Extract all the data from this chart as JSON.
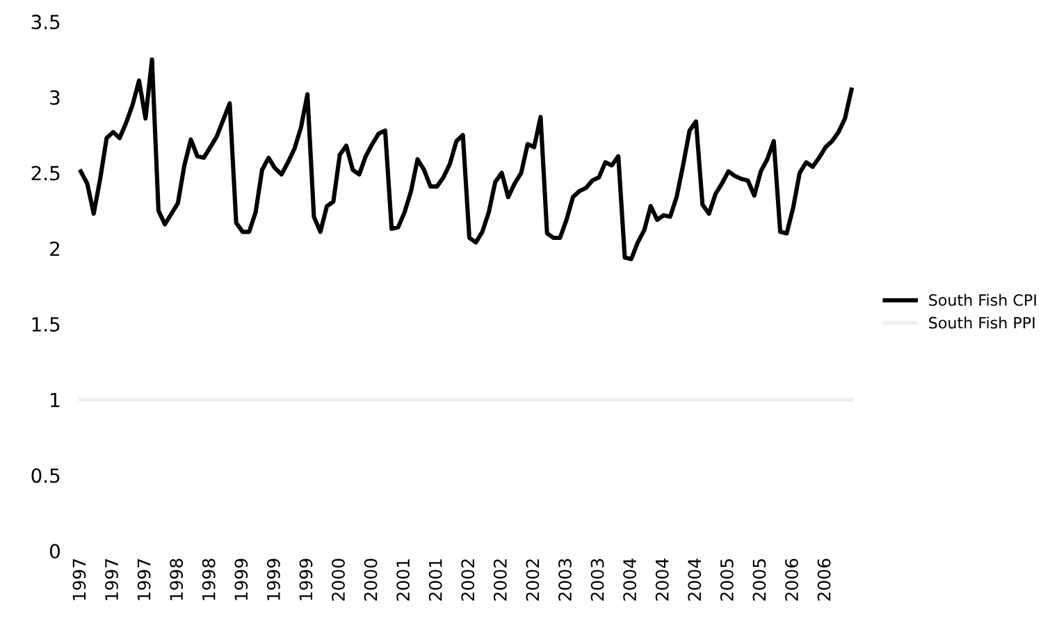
{
  "chart_data": {
    "type": "line",
    "categories": [
      "1997",
      null,
      null,
      null,
      null,
      "1997",
      null,
      null,
      null,
      null,
      "1997",
      null,
      null,
      null,
      null,
      "1998",
      null,
      null,
      null,
      null,
      "1998",
      null,
      null,
      null,
      null,
      "1999",
      null,
      null,
      null,
      null,
      "1999",
      null,
      null,
      null,
      null,
      "1999",
      null,
      null,
      null,
      null,
      "2000",
      null,
      null,
      null,
      null,
      "2000",
      null,
      null,
      null,
      null,
      "2001",
      null,
      null,
      null,
      null,
      "2001",
      null,
      null,
      null,
      null,
      "2002",
      null,
      null,
      null,
      null,
      "2002",
      null,
      null,
      null,
      null,
      "2002",
      null,
      null,
      null,
      null,
      "2003",
      null,
      null,
      null,
      null,
      "2003",
      null,
      null,
      null,
      null,
      "2004",
      null,
      null,
      null,
      null,
      "2004",
      null,
      null,
      null,
      null,
      "2004",
      null,
      null,
      null,
      null,
      "2005",
      null,
      null,
      null,
      null,
      "2005",
      null,
      null,
      null,
      null,
      "2006",
      null,
      null,
      null,
      null,
      "2006",
      null,
      null,
      null,
      null
    ],
    "series": [
      {
        "name": "South Fish CPI",
        "color": "#000000",
        "values": [
          2.51,
          2.43,
          2.23,
          2.46,
          2.73,
          2.77,
          2.73,
          2.83,
          2.95,
          3.11,
          2.86,
          3.25,
          2.25,
          2.16,
          2.23,
          2.3,
          2.55,
          2.72,
          2.61,
          2.6,
          2.67,
          2.74,
          2.85,
          2.96,
          2.17,
          2.11,
          2.11,
          2.24,
          2.52,
          2.6,
          2.53,
          2.49,
          2.57,
          2.66,
          2.8,
          3.02,
          2.21,
          2.11,
          2.28,
          2.31,
          2.62,
          2.68,
          2.52,
          2.49,
          2.61,
          2.69,
          2.76,
          2.78,
          2.13,
          2.14,
          2.24,
          2.38,
          2.59,
          2.52,
          2.41,
          2.41,
          2.47,
          2.56,
          2.71,
          2.75,
          2.07,
          2.04,
          2.11,
          2.24,
          2.44,
          2.5,
          2.34,
          2.43,
          2.5,
          2.69,
          2.67,
          2.87,
          2.1,
          2.07,
          2.07,
          2.19,
          2.34,
          2.38,
          2.4,
          2.45,
          2.47,
          2.57,
          2.55,
          2.61,
          1.94,
          1.93,
          2.04,
          2.12,
          2.28,
          2.19,
          2.22,
          2.21,
          2.34,
          2.55,
          2.78,
          2.84,
          2.29,
          2.23,
          2.36,
          2.43,
          2.51,
          2.48,
          2.46,
          2.45,
          2.35,
          2.51,
          2.59,
          2.71,
          2.11,
          2.1,
          2.27,
          2.5,
          2.57,
          2.54,
          2.6,
          2.67,
          2.71,
          2.77,
          2.86,
          3.05
        ]
      },
      {
        "name": "South Fish PPI",
        "color": "#f0f0f0",
        "values": [
          1,
          1,
          1,
          1,
          1,
          1,
          1,
          1,
          1,
          1,
          1,
          1,
          1,
          1,
          1,
          1,
          1,
          1,
          1,
          1,
          1,
          1,
          1,
          1,
          1,
          1,
          1,
          1,
          1,
          1,
          1,
          1,
          1,
          1,
          1,
          1,
          1,
          1,
          1,
          1,
          1,
          1,
          1,
          1,
          1,
          1,
          1,
          1,
          1,
          1,
          1,
          1,
          1,
          1,
          1,
          1,
          1,
          1,
          1,
          1,
          1,
          1,
          1,
          1,
          1,
          1,
          1,
          1,
          1,
          1,
          1,
          1,
          1,
          1,
          1,
          1,
          1,
          1,
          1,
          1,
          1,
          1,
          1,
          1,
          1,
          1,
          1,
          1,
          1,
          1,
          1,
          1,
          1,
          1,
          1,
          1,
          1,
          1,
          1,
          1,
          1,
          1,
          1,
          1,
          1,
          1,
          1,
          1,
          1,
          1,
          1,
          1,
          1,
          1,
          1,
          1,
          1,
          1,
          1,
          1
        ]
      }
    ],
    "ylim": [
      0,
      3.5
    ],
    "yticks": [
      0,
      0.5,
      1,
      1.5,
      2,
      2.5,
      3,
      3.5
    ],
    "legend": "right",
    "grid": false
  }
}
